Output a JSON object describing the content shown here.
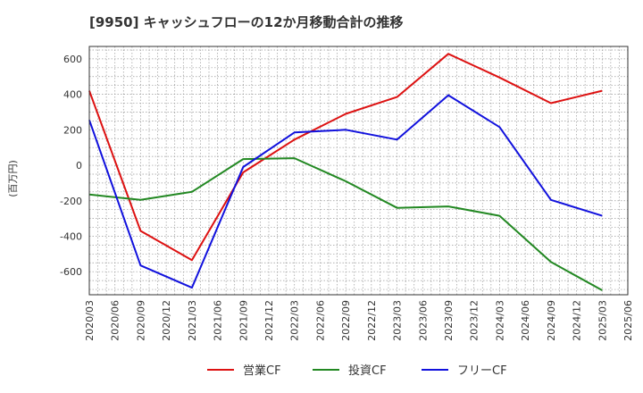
{
  "chart_data": {
    "type": "line",
    "title": "[9950]  キャッシュフローの12か月移動合計の推移",
    "ylabel": "(百万円)",
    "xlabel": "",
    "ylim": [
      -730,
      670
    ],
    "yticks": [
      -600,
      -400,
      -200,
      0,
      200,
      400,
      600
    ],
    "x_ticks": [
      "2020/03",
      "2020/06",
      "2020/09",
      "2020/12",
      "2021/03",
      "2021/06",
      "2021/09",
      "2021/12",
      "2022/03",
      "2022/06",
      "2022/09",
      "2022/12",
      "2023/03",
      "2023/06",
      "2023/09",
      "2023/12",
      "2024/03",
      "2024/06",
      "2024/09",
      "2024/12",
      "2025/03",
      "2025/06"
    ],
    "grid": true,
    "legend_position": "bottom",
    "series": [
      {
        "name": "営業CF",
        "color": "#dd1111",
        "x": [
          "2020/03",
          "2020/09",
          "2021/03",
          "2021/09",
          "2022/03",
          "2022/09",
          "2023/03",
          "2023/09",
          "2024/03",
          "2024/09",
          "2025/03"
        ],
        "values": [
          420,
          -370,
          -535,
          -40,
          145,
          290,
          385,
          628,
          495,
          350,
          420
        ]
      },
      {
        "name": "投資CF",
        "color": "#228822",
        "x": [
          "2020/03",
          "2020/09",
          "2021/03",
          "2021/09",
          "2022/03",
          "2022/09",
          "2023/03",
          "2023/09",
          "2024/03",
          "2024/09",
          "2025/03"
        ],
        "values": [
          -165,
          -195,
          -150,
          35,
          40,
          -90,
          -240,
          -232,
          -285,
          -545,
          -705
        ]
      },
      {
        "name": "フリーCF",
        "color": "#1111dd",
        "x": [
          "2020/03",
          "2020/09",
          "2021/03",
          "2021/09",
          "2022/03",
          "2022/09",
          "2023/03",
          "2023/09",
          "2024/03",
          "2024/09",
          "2025/03"
        ],
        "values": [
          255,
          -565,
          -690,
          -10,
          185,
          200,
          145,
          395,
          215,
          -195,
          -285
        ]
      }
    ]
  }
}
